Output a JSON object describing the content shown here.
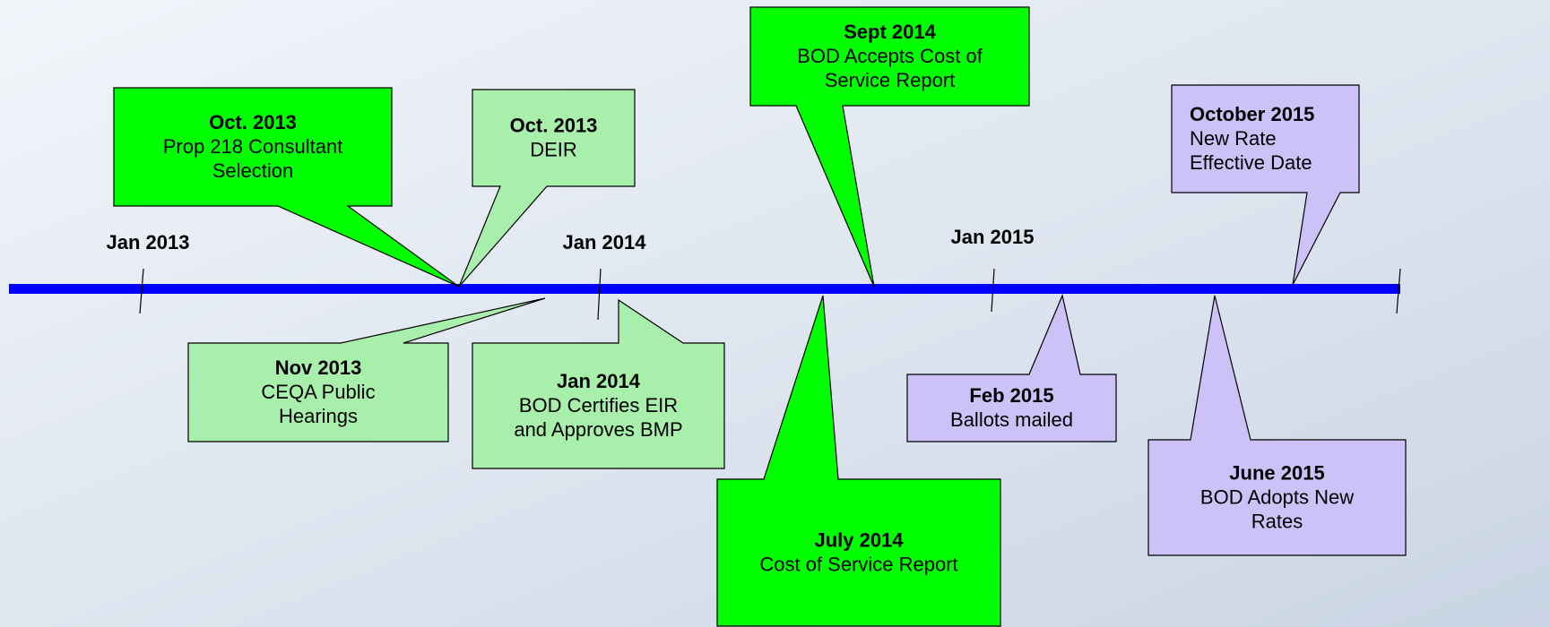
{
  "timeline": {
    "years": [
      "Jan 2013",
      "Jan 2014",
      "Jan 2015"
    ],
    "callouts": [
      {
        "date": "Oct. 2013",
        "lines": [
          "Prop 218 Consultant",
          "Selection"
        ]
      },
      {
        "date": "Oct. 2013",
        "lines": [
          "DEIR"
        ]
      },
      {
        "date": "Sept 2014",
        "lines": [
          "BOD Accepts Cost of",
          "Service Report"
        ]
      },
      {
        "date": "October 2015",
        "lines": [
          "New Rate",
          "Effective Date"
        ]
      },
      {
        "date": "Nov 2013",
        "lines": [
          "CEQA Public",
          "Hearings"
        ]
      },
      {
        "date": "Jan 2014",
        "lines": [
          "BOD Certifies EIR",
          "and Approves BMP"
        ]
      },
      {
        "date": "July 2014",
        "lines": [
          "Cost of Service Report"
        ]
      },
      {
        "date": "Feb 2015",
        "lines": [
          "Ballots mailed"
        ]
      },
      {
        "date": "June 2015",
        "lines": [
          "BOD Adopts New",
          "Rates"
        ]
      }
    ]
  }
}
